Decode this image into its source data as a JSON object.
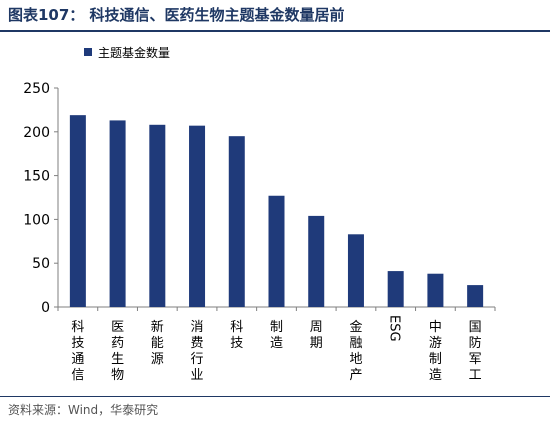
{
  "figure": {
    "title": "图表107：  科技通信、医药生物主题基金数量居前",
    "source": "资料来源：Wind，华泰研究"
  },
  "colors": {
    "bar": "#1f3a7a",
    "title": "#1f3864",
    "axis": "#7f7f7f",
    "text": "#000000"
  },
  "chart_data": {
    "type": "bar",
    "categories": [
      "科技通信",
      "医药生物",
      "新能源",
      "消费行业",
      "科技",
      "制造",
      "周期",
      "金融地产",
      "ESG",
      "中游制造",
      "国防军工"
    ],
    "series": [
      {
        "name": "主题基金数量",
        "values": [
          219,
          213,
          208,
          207,
          195,
          127,
          104,
          83,
          41,
          38,
          25
        ]
      }
    ],
    "ylim": [
      0,
      250
    ],
    "yticks": [
      0,
      50,
      100,
      150,
      200,
      250
    ],
    "grid": false,
    "legend_position": "top-left"
  }
}
